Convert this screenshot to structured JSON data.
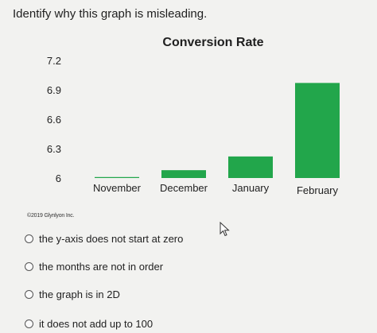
{
  "question": "Identify why this graph is misleading.",
  "chart_data": {
    "type": "bar",
    "title": "Conversion Rate",
    "categories": [
      "November",
      "December",
      "January",
      "February"
    ],
    "values": [
      6.01,
      6.08,
      6.22,
      6.97
    ],
    "ylim": [
      6,
      7.2
    ],
    "yticks": [
      "7.2",
      "6.9",
      "6.6",
      "6.3",
      "6"
    ],
    "ytick_values": [
      7.2,
      6.9,
      6.6,
      6.3,
      6.0
    ],
    "xlabel": "",
    "ylabel": "",
    "grid": false,
    "bar_color": "#22a64b"
  },
  "copyright": "©2019 Glynlyon Inc.",
  "options": [
    {
      "label": "the y-axis does not start at zero"
    },
    {
      "label": "the months are not in order"
    },
    {
      "label": "the graph is in 2D"
    },
    {
      "label": "it does not add up to 100"
    }
  ]
}
